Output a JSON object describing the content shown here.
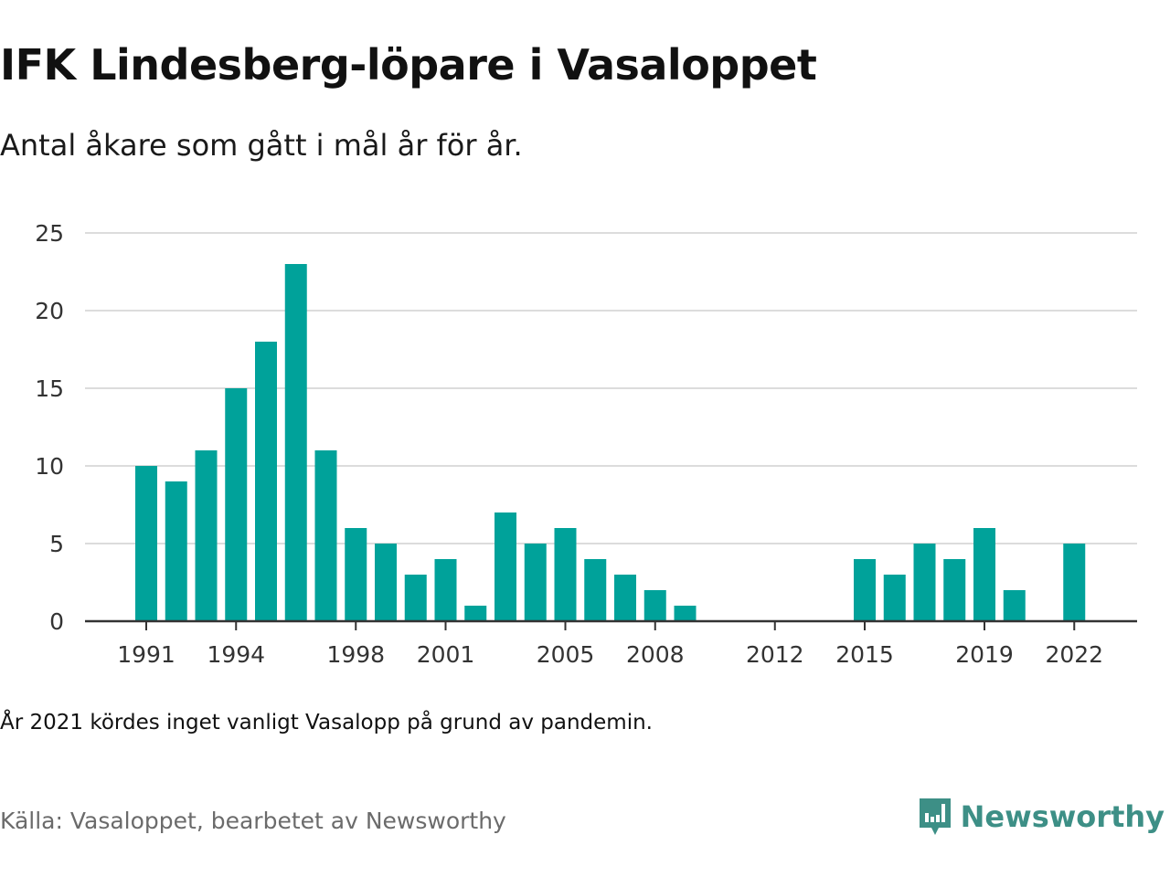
{
  "chart_data": {
    "type": "bar",
    "title": "IFK Lindesberg-löpare i Vasaloppet",
    "subtitle": "Antal åkare som gått i mål år för år.",
    "x": [
      1991,
      1992,
      1993,
      1994,
      1995,
      1996,
      1997,
      1998,
      1999,
      2000,
      2001,
      2002,
      2003,
      2004,
      2005,
      2006,
      2007,
      2008,
      2009,
      2010,
      2011,
      2012,
      2013,
      2014,
      2015,
      2016,
      2017,
      2018,
      2019,
      2020,
      2021,
      2022
    ],
    "values": [
      10,
      9,
      11,
      15,
      18,
      23,
      11,
      6,
      5,
      3,
      4,
      1,
      7,
      5,
      6,
      4,
      3,
      2,
      1,
      0,
      0,
      0,
      0,
      0,
      4,
      3,
      5,
      4,
      6,
      2,
      null,
      5
    ],
    "xticks": [
      1991,
      1994,
      1998,
      2001,
      2005,
      2008,
      2012,
      2015,
      2019,
      2022
    ],
    "yticks": [
      0,
      5,
      10,
      15,
      20,
      25
    ],
    "ylim": [
      0,
      25
    ],
    "grid": true,
    "bar_color": "#00a29a",
    "note": "År 2021 kördes inget vanligt Vasalopp på grund av pandemin.",
    "source": "Källa: Vasaloppet, bearbetet av Newsworthy"
  },
  "brand": {
    "name": "Newsworthy",
    "color": "#3d8f86",
    "icon": "newsworthy-logo-icon"
  }
}
